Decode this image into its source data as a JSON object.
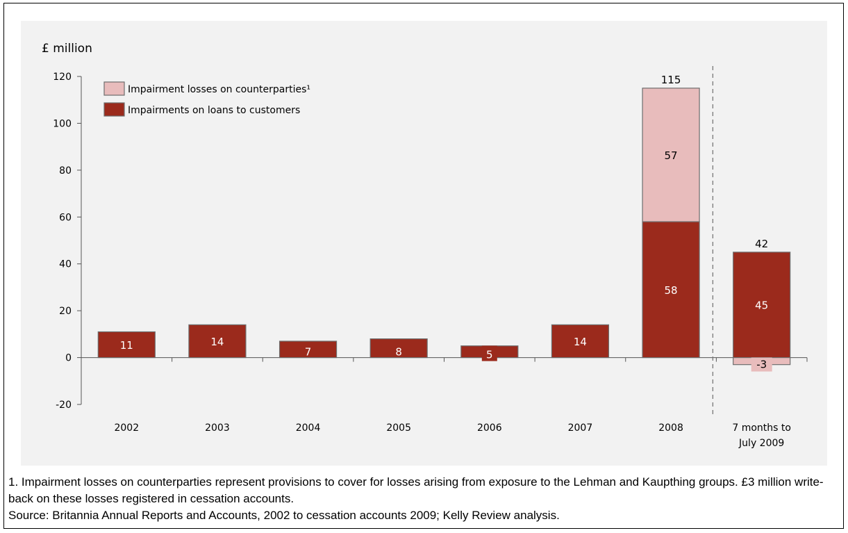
{
  "chart_data": {
    "type": "bar",
    "stacked": true,
    "unit_label": "£ million",
    "categories": [
      "2002",
      "2003",
      "2004",
      "2005",
      "2006",
      "2007",
      "2008",
      "7 months to|July 2009"
    ],
    "series": [
      {
        "name": "Impairments on loans to customers",
        "color": "#9b2a1c",
        "values": [
          11,
          14,
          7,
          8,
          5,
          14,
          58,
          45
        ],
        "labels": [
          "11",
          "14",
          "7",
          "8",
          "5",
          "14",
          "58",
          "45"
        ]
      },
      {
        "name": "Impairment losses on counterparties¹",
        "color": "#e8bcbc",
        "values": [
          0,
          0,
          0,
          0,
          0,
          0,
          57,
          -3
        ],
        "labels": [
          "",
          "",
          "",
          "",
          "",
          "",
          "57",
          "-3"
        ]
      }
    ],
    "totals": [
      "",
      "",
      "",
      "",
      "",
      "",
      "115",
      "42"
    ],
    "ylim": [
      -20,
      120
    ],
    "yticks": [
      -20,
      0,
      20,
      40,
      60,
      80,
      100,
      120
    ],
    "legend_position": "top-left",
    "divider_before_last_category": true
  },
  "notes": {
    "footnote": "1. Impairment losses on counterparties represent provisions to cover for losses arising from exposure to the Lehman and Kaupthing groups. £3 million write-back on these losses registered in cessation accounts.",
    "source": "Source: Britannia Annual Reports and Accounts, 2002 to cessation accounts 2009; Kelly Review analysis."
  }
}
